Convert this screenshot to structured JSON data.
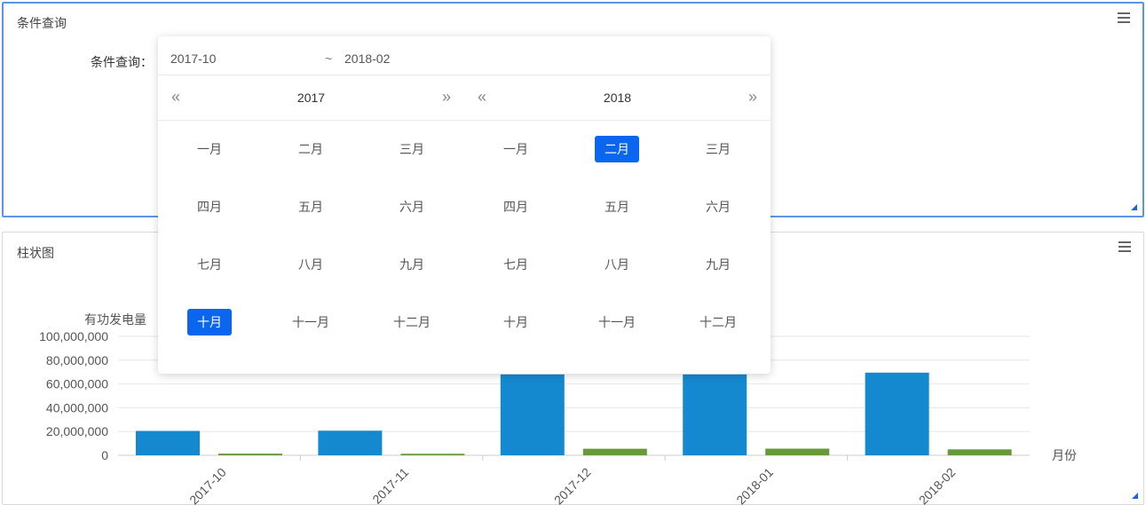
{
  "query_panel": {
    "title": "条件查询",
    "label": "条件查询："
  },
  "picker": {
    "start_value": "2017-10",
    "separator": "~",
    "end_value": "2018-02",
    "calendars": [
      {
        "year": "2017",
        "prev": "«",
        "next": "»",
        "months": [
          "一月",
          "二月",
          "三月",
          "四月",
          "五月",
          "六月",
          "七月",
          "八月",
          "九月",
          "十月",
          "十一月",
          "十二月"
        ],
        "selected_index": 9
      },
      {
        "year": "2018",
        "prev": "«",
        "next": "»",
        "months": [
          "一月",
          "二月",
          "三月",
          "四月",
          "五月",
          "六月",
          "七月",
          "八月",
          "九月",
          "十月",
          "十一月",
          "十二月"
        ],
        "selected_index": 1
      }
    ],
    "selected_color": "#0a66ee"
  },
  "chart_panel": {
    "title": "柱状图"
  },
  "chart_data": {
    "type": "bar",
    "ylabel": "有功发电量",
    "xlabel": "月份",
    "categories": [
      "2017-10",
      "2017-11",
      "2017-12",
      "2018-01",
      "2018-02"
    ],
    "yticks": [
      "0",
      "20,000,000",
      "40,000,000",
      "60,000,000",
      "80,000,000",
      "100,000,000"
    ],
    "ylim": [
      0,
      100000000
    ],
    "grid": true,
    "series": [
      {
        "color": "#1589d0",
        "values": [
          20500000,
          20700000,
          68000000,
          68000000,
          69500000
        ]
      },
      {
        "color": "#67993a",
        "values": [
          1400000,
          1300000,
          5500000,
          5600000,
          5000000
        ]
      }
    ]
  }
}
